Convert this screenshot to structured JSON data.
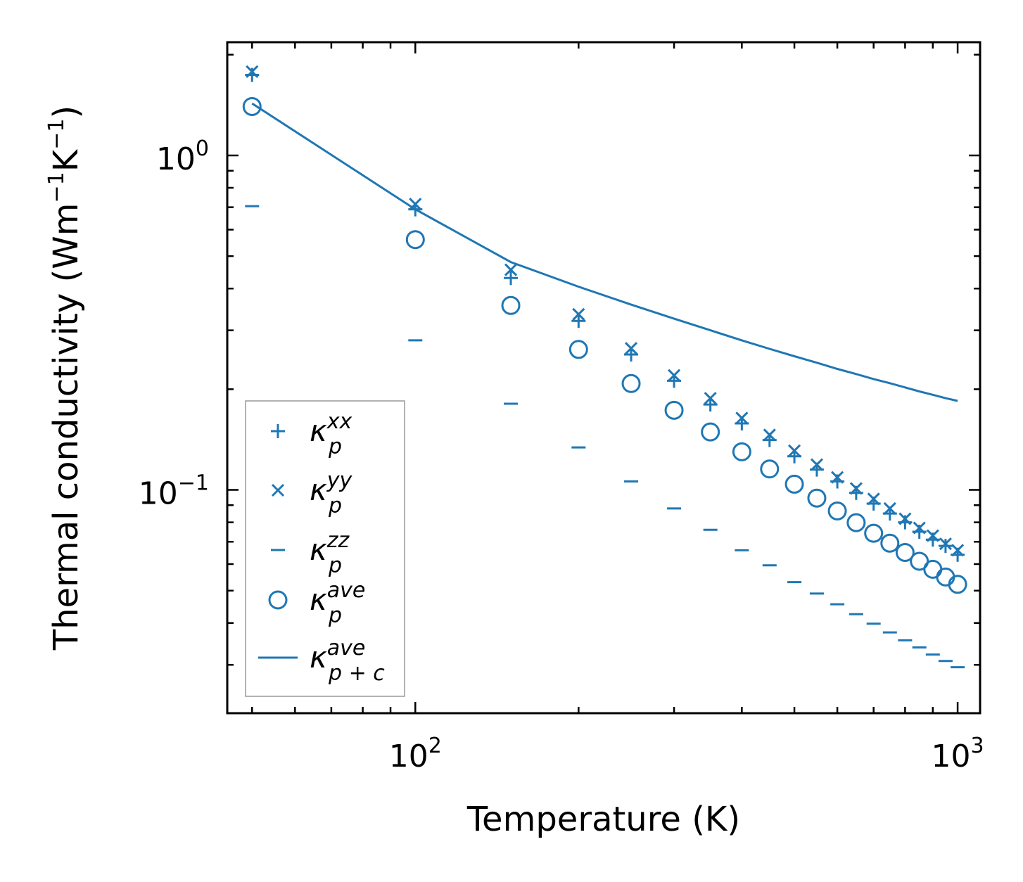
{
  "chart_data": {
    "type": "scatter",
    "title": "",
    "xlabel": "Temperature (K)",
    "ylabel": "Thermal conductivity (Wm",
    "ylabel_parts": [
      "Thermal conductivity (Wm",
      "−1",
      "K",
      "−1",
      ")"
    ],
    "xscale": "log",
    "yscale": "log",
    "xlim": [
      45,
      1100
    ],
    "ylim": [
      0.0215,
      2.18
    ],
    "x_ticks": [
      {
        "value": 100,
        "base": "10",
        "exp": "2"
      },
      {
        "value": 1000,
        "base": "10",
        "exp": "3"
      }
    ],
    "y_ticks": [
      {
        "value": 1,
        "base": "10",
        "exp": "0"
      },
      {
        "value": 0.1,
        "base": "10",
        "exp": "−1"
      }
    ],
    "color": "#1f77b4",
    "legend_position": "lower-left",
    "x": [
      50,
      100,
      150,
      200,
      250,
      300,
      350,
      400,
      450,
      500,
      550,
      600,
      650,
      700,
      750,
      800,
      850,
      900,
      950,
      1000
    ],
    "series": [
      {
        "name": "kxx",
        "marker": "plus",
        "legend": {
          "base": "κ",
          "sub": "p",
          "sup": "xx"
        },
        "values": [
          1.74,
          0.69,
          0.43,
          0.32,
          0.254,
          0.212,
          0.18,
          0.158,
          0.141,
          0.126,
          0.115,
          0.106,
          0.098,
          0.091,
          0.085,
          0.08,
          0.075,
          0.071,
          0.068,
          0.064
        ]
      },
      {
        "name": "kyy",
        "marker": "x",
        "legend": {
          "base": "κ",
          "sub": "p",
          "sup": "yy"
        },
        "values": [
          1.78,
          0.715,
          0.455,
          0.335,
          0.265,
          0.22,
          0.188,
          0.164,
          0.146,
          0.131,
          0.119,
          0.109,
          0.101,
          0.094,
          0.088,
          0.082,
          0.077,
          0.073,
          0.069,
          0.066
        ]
      },
      {
        "name": "kzz",
        "marker": "hline",
        "legend": {
          "base": "κ",
          "sub": "p",
          "sup": "zz"
        },
        "values": [
          0.705,
          0.28,
          0.181,
          0.134,
          0.106,
          0.088,
          0.076,
          0.066,
          0.0595,
          0.053,
          0.049,
          0.0455,
          0.0425,
          0.0398,
          0.0375,
          0.0355,
          0.0338,
          0.0322,
          0.0308,
          0.0295
        ]
      },
      {
        "name": "kave",
        "marker": "circle",
        "legend": {
          "base": "κ",
          "sub": "p",
          "sup": "ave"
        },
        "values": [
          1.4,
          0.56,
          0.356,
          0.263,
          0.208,
          0.173,
          0.149,
          0.13,
          0.1155,
          0.104,
          0.0945,
          0.0865,
          0.0798,
          0.0742,
          0.0693,
          0.065,
          0.0612,
          0.0579,
          0.0549,
          0.0522
        ]
      },
      {
        "name": "kave_pc",
        "marker": "line",
        "legend": {
          "base": "κ",
          "sub": "p + c",
          "sup": "ave"
        },
        "values": [
          1.43,
          0.69,
          0.48,
          0.405,
          0.358,
          0.325,
          0.3,
          0.28,
          0.264,
          0.251,
          0.24,
          0.23,
          0.222,
          0.2145,
          0.2085,
          0.2025,
          0.197,
          0.1925,
          0.188,
          0.1845
        ]
      }
    ]
  }
}
